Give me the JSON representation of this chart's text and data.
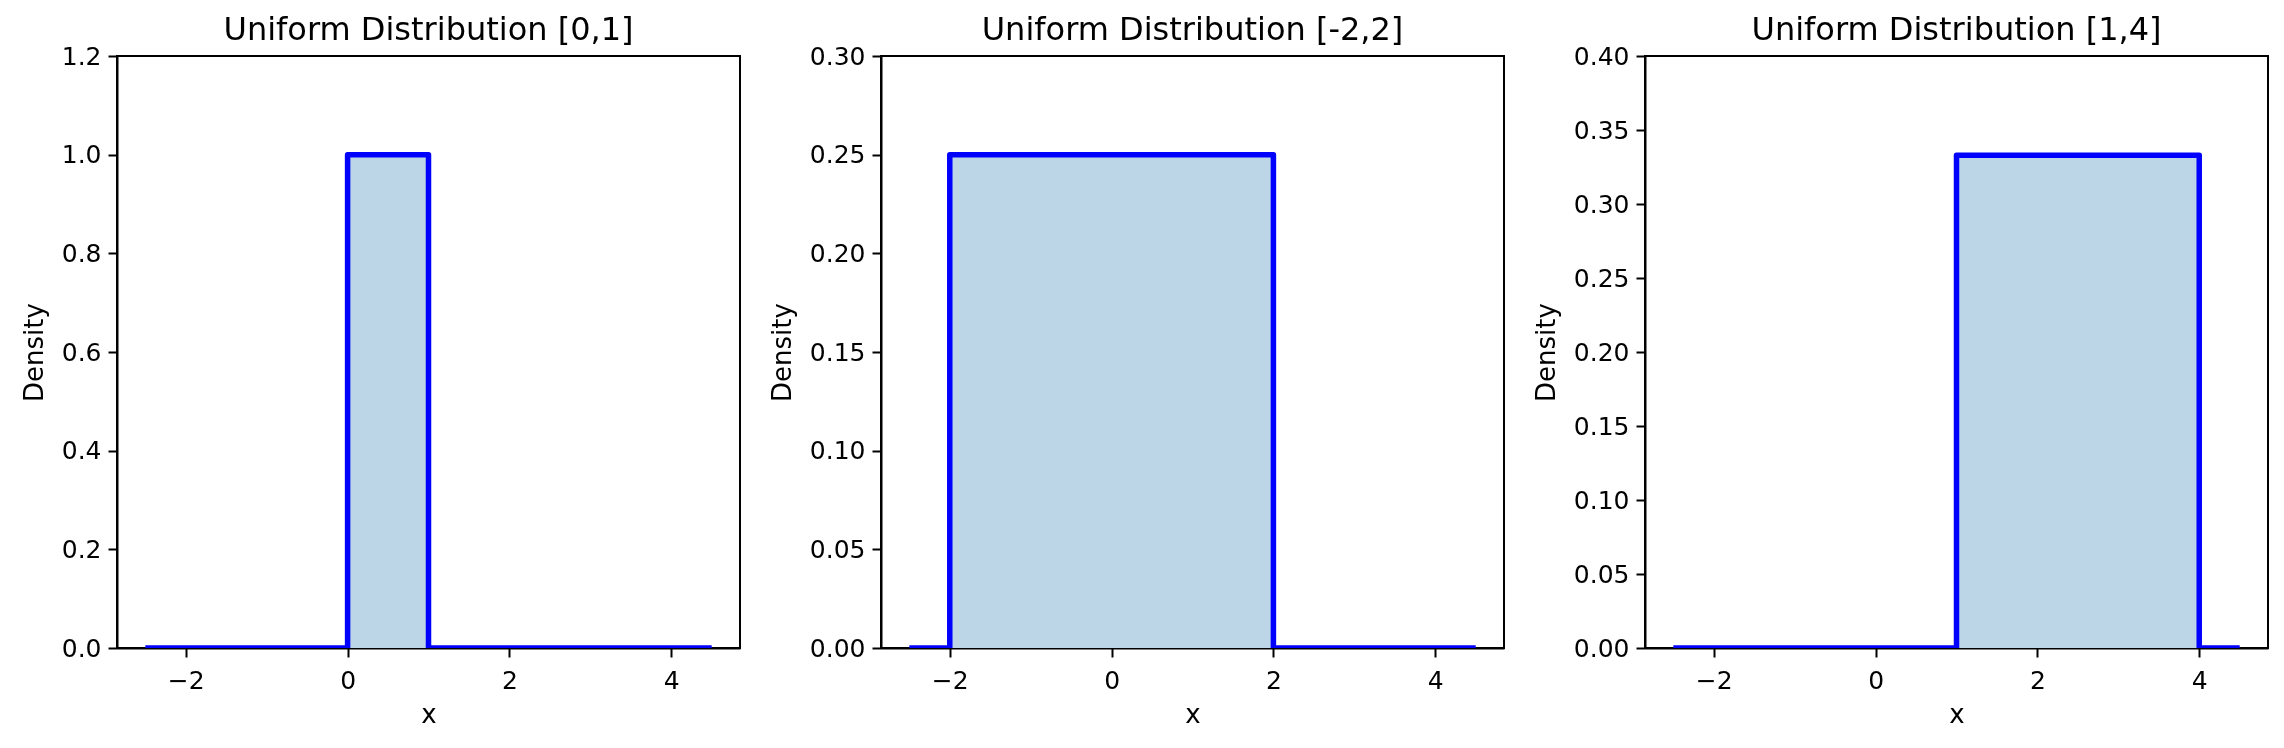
{
  "chart_data": [
    {
      "type": "line",
      "title": "Uniform Distribution [0,1]",
      "xlabel": "x",
      "ylabel": "Density",
      "series": [
        {
          "type": "area",
          "color": "#bcd6e8",
          "x": [
            0,
            1
          ],
          "values": [
            1,
            1
          ]
        },
        {
          "type": "line",
          "color": "#0000ff",
          "x": [
            -2.5,
            0,
            0,
            1,
            1,
            4.5
          ],
          "values": [
            0,
            0,
            1,
            1,
            0,
            0
          ]
        }
      ],
      "xlim": [
        -2.85,
        4.85
      ],
      "xticks": [
        -2,
        0,
        2,
        4
      ],
      "ylim": [
        0,
        1.2
      ],
      "yticks": [
        {
          "value": 0,
          "label": "0.0"
        },
        0.2,
        0.4,
        0.6,
        0.8,
        {
          "value": 1,
          "label": "1.0"
        },
        1.2
      ]
    },
    {
      "type": "line",
      "title": "Uniform Distribution [-2,2]",
      "xlabel": "x",
      "ylabel": "Density",
      "series": [
        {
          "type": "area",
          "color": "#bcd6e8",
          "x": [
            -2,
            2
          ],
          "values": [
            0.25,
            0.25
          ]
        },
        {
          "type": "line",
          "color": "#0000ff",
          "x": [
            -2.5,
            -2,
            -2,
            2,
            2,
            4.5
          ],
          "values": [
            0,
            0,
            0.25,
            0.25,
            0,
            0
          ]
        }
      ],
      "xlim": [
        -2.85,
        4.85
      ],
      "xticks": [
        -2,
        0,
        2,
        4
      ],
      "ylim": [
        0,
        0.3
      ],
      "yticks": [
        {
          "value": 0,
          "label": "0.00"
        },
        0.05,
        {
          "value": 0.1,
          "label": "0.10"
        },
        0.15,
        {
          "value": 0.2,
          "label": "0.20"
        },
        0.25,
        {
          "value": 0.3,
          "label": "0.30"
        }
      ]
    },
    {
      "type": "line",
      "title": "Uniform Distribution [1,4]",
      "xlabel": "x",
      "ylabel": "Density",
      "series": [
        {
          "type": "area",
          "color": "#bcd6e8",
          "x": [
            1,
            4
          ],
          "values": [
            0.333,
            0.333
          ]
        },
        {
          "type": "line",
          "color": "#0000ff",
          "x": [
            -2.5,
            1,
            1,
            4,
            4,
            4.5
          ],
          "values": [
            0,
            0,
            0.333,
            0.333,
            0,
            0
          ]
        }
      ],
      "xlim": [
        -2.85,
        4.85
      ],
      "xticks": [
        -2,
        0,
        2,
        4
      ],
      "ylim": [
        0,
        0.4
      ],
      "yticks": [
        {
          "value": 0,
          "label": "0.00"
        },
        0.05,
        {
          "value": 0.1,
          "label": "0.10"
        },
        0.15,
        {
          "value": 0.2,
          "label": "0.20"
        },
        0.25,
        {
          "value": 0.3,
          "label": "0.30"
        },
        0.35,
        {
          "value": 0.4,
          "label": "0.40"
        }
      ]
    }
  ]
}
